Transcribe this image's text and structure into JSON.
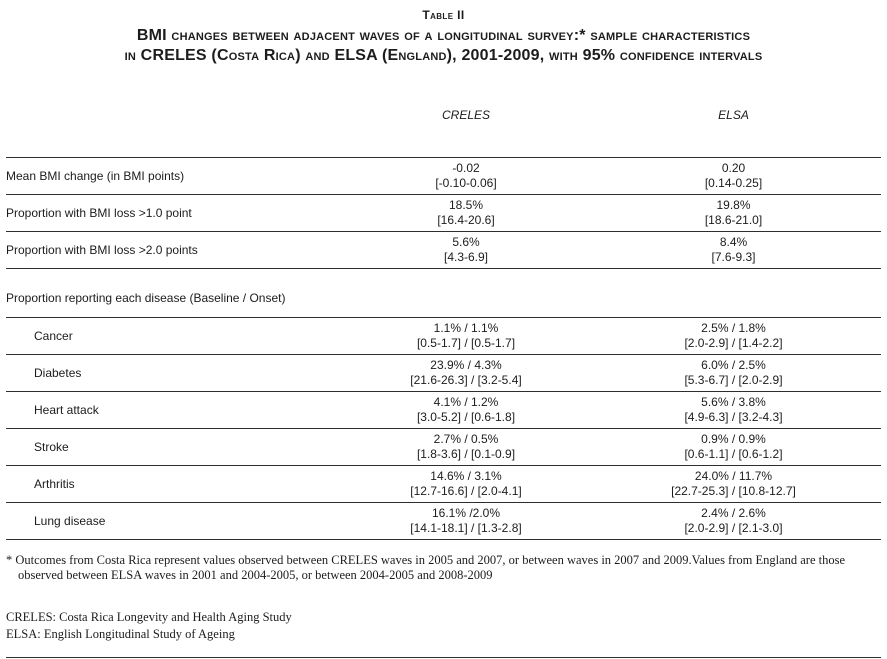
{
  "header": {
    "label": "Table II",
    "title_line1": "BMI changes between adjacent waves of a longitudinal survey:* sample characteristics",
    "title_line2": "in CRELES (Costa Rica) and ELSA (England), 2001-2009, with 95% confidence intervals"
  },
  "columns": [
    "CRELES",
    "ELSA"
  ],
  "rows": [
    {
      "label": "Mean BMI change (in BMI points)",
      "creles_value": "-0.02",
      "creles_ci": "[-0.10-0.06]",
      "elsa_value": "0.20",
      "elsa_ci": "[0.14-0.25]"
    },
    {
      "label": "Proportion with BMI loss >1.0 point",
      "creles_value": "18.5%",
      "creles_ci": "[16.4-20.6]",
      "elsa_value": "19.8%",
      "elsa_ci": "[18.6-21.0]"
    },
    {
      "label": "Proportion with BMI loss >2.0 points",
      "creles_value": "5.6%",
      "creles_ci": "[4.3-6.9]",
      "elsa_value": "8.4%",
      "elsa_ci": "[7.6-9.3]"
    }
  ],
  "section_header": "Proportion reporting each disease (Baseline / Onset)",
  "disease_rows": [
    {
      "label": "Cancer",
      "creles_value": "1.1% / 1.1%",
      "creles_ci": "[0.5-1.7] / [0.5-1.7]",
      "elsa_value": "2.5% / 1.8%",
      "elsa_ci": "[2.0-2.9] / [1.4-2.2]"
    },
    {
      "label": "Diabetes",
      "creles_value": "23.9% / 4.3%",
      "creles_ci": "[21.6-26.3] / [3.2-5.4]",
      "elsa_value": "6.0% / 2.5%",
      "elsa_ci": "[5.3-6.7] / [2.0-2.9]"
    },
    {
      "label": "Heart attack",
      "creles_value": "4.1% / 1.2%",
      "creles_ci": "[3.0-5.2] / [0.6-1.8]",
      "elsa_value": "5.6% / 3.8%",
      "elsa_ci": "[4.9-6.3] / [3.2-4.3]"
    },
    {
      "label": "Stroke",
      "creles_value": "2.7% / 0.5%",
      "creles_ci": "[1.8-3.6] / [0.1-0.9]",
      "elsa_value": "0.9% / 0.9%",
      "elsa_ci": "[0.6-1.1] / [0.6-1.2]"
    },
    {
      "label": "Arthritis",
      "creles_value": "14.6% / 3.1%",
      "creles_ci": "[12.7-16.6] / [2.0-4.1]",
      "elsa_value": "24.0% / 11.7%",
      "elsa_ci": "[22.7-25.3] / [10.8-12.7]"
    },
    {
      "label": "Lung disease",
      "creles_value": "16.1% /2.0%",
      "creles_ci": "[14.1-18.1] / [1.3-2.8]",
      "elsa_value": "2.4% / 2.6%",
      "elsa_ci": "[2.0-2.9] / [2.1-3.0]"
    }
  ],
  "footnote": {
    "marker": "*",
    "text": " Outcomes from Costa Rica represent values observed between CRELES waves in 2005 and 2007, or between waves in 2007 and 2009.Values from England are those observed between ELSA waves in 2001 and 2004-2005, or between 2004-2005 and 2008-2009"
  },
  "definitions": [
    "CRELES: Costa Rica Longevity and Health Aging Study",
    "ELSA: English Longitudinal Study of Ageing"
  ]
}
